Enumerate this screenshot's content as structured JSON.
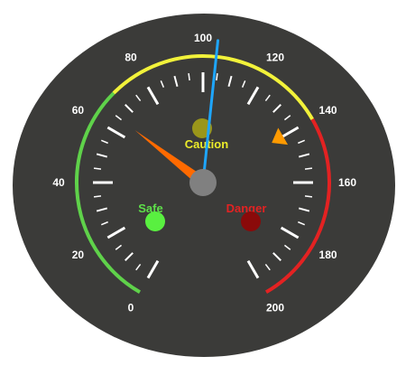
{
  "gauge": {
    "min": 0,
    "max": 200,
    "major_step": 20,
    "minor_step": 5,
    "tick_labels": [
      "0",
      "20",
      "40",
      "60",
      "80",
      "100",
      "120",
      "140",
      "160",
      "180",
      "200"
    ],
    "main_value": 104,
    "secondary_value": 65,
    "marker_value": 140,
    "bands": [
      {
        "name": "safe-band",
        "from": 0,
        "to": 70,
        "color": "#5fd24a"
      },
      {
        "name": "caution-band",
        "from": 70,
        "to": 140,
        "color": "#f2f23a"
      },
      {
        "name": "danger-band",
        "from": 140,
        "to": 200,
        "color": "#e32222"
      }
    ],
    "colors": {
      "face": "#3b3b39",
      "ticks": "#ffffff",
      "main_needle": "#1ea6ff",
      "secondary_needle": "#ff6a00",
      "marker": "#ff9a00",
      "hub": "#808080"
    },
    "indicators": [
      {
        "name": "safe-indicator",
        "label": "Safe",
        "label_color": "#5ee04a",
        "lamp_color": "#59f040"
      },
      {
        "name": "caution-indicator",
        "label": "Caution",
        "label_color": "#ecec2a",
        "lamp_color": "#9a961a"
      },
      {
        "name": "danger-indicator",
        "label": "Danger",
        "label_color": "#e32222",
        "lamp_color": "#8a0a0a"
      }
    ]
  }
}
